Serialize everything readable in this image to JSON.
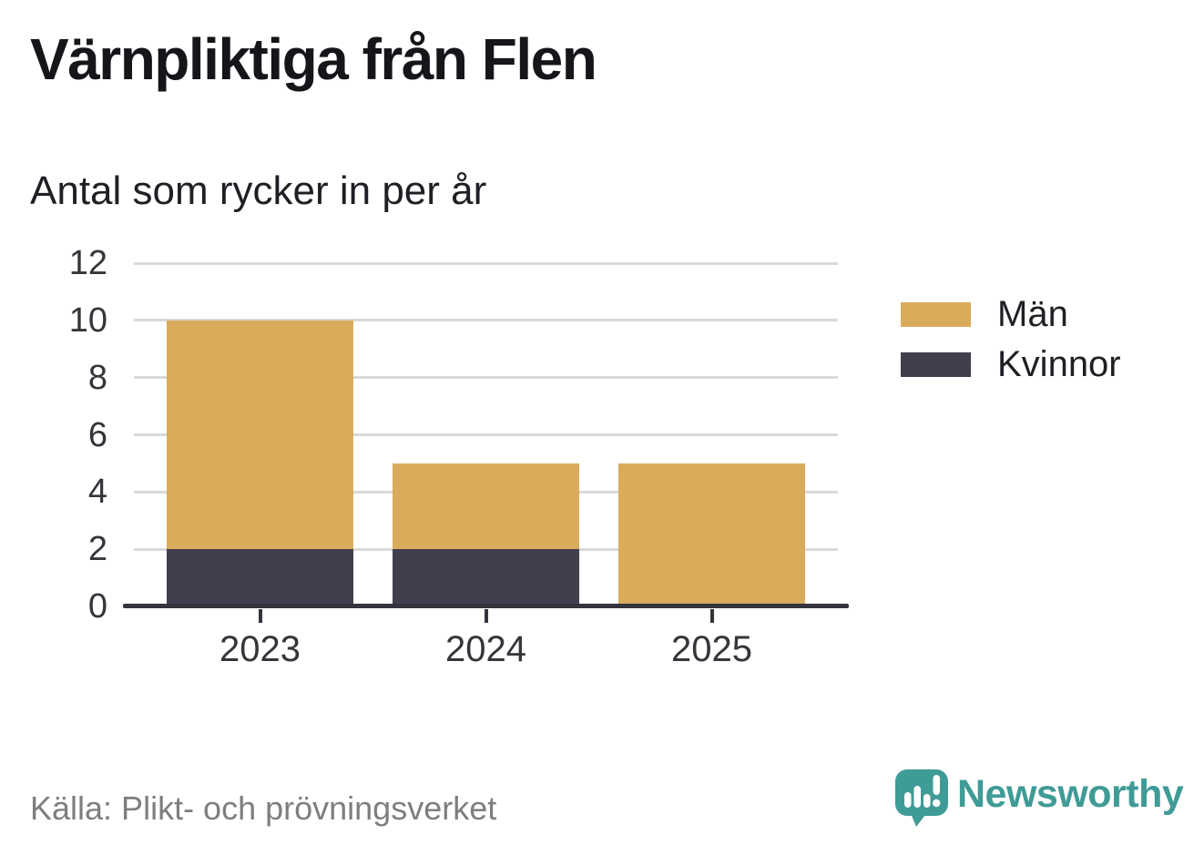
{
  "header": {
    "title": "Värnpliktiga från Flen",
    "subtitle": "Antal som rycker in per år"
  },
  "chart_data": {
    "type": "bar",
    "stacked": true,
    "title": "Värnpliktiga från Flen",
    "subtitle": "Antal som rycker in per år",
    "categories": [
      "2023",
      "2024",
      "2025"
    ],
    "series": [
      {
        "name": "Män",
        "color": "#d9ac5c",
        "values": [
          8,
          3,
          5
        ]
      },
      {
        "name": "Kvinnor",
        "color": "#413f4d",
        "values": [
          2,
          2,
          0
        ]
      }
    ],
    "stack_order": [
      "Kvinnor",
      "Män"
    ],
    "totals": [
      10,
      5,
      5
    ],
    "ylim": [
      0,
      12
    ],
    "yticks": [
      0,
      2,
      4,
      6,
      8,
      10,
      12
    ],
    "grid": "horizontal",
    "grid_color": "#d9d9d9",
    "axis_color": "#35343d",
    "legend_position": "right"
  },
  "footer": {
    "source": "Källa: Plikt- och prövningsverket",
    "brand": "Newsworthy",
    "brand_color": "#3f9b96"
  }
}
